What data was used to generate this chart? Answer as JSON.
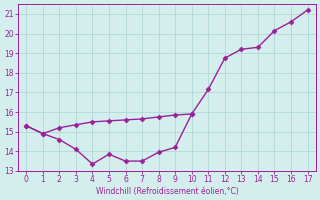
{
  "upper_x": [
    0,
    1,
    2,
    3,
    4,
    5,
    6,
    7,
    8,
    9,
    10,
    11,
    12,
    13,
    14,
    15,
    16,
    17
  ],
  "upper_y": [
    15.3,
    14.9,
    15.2,
    15.35,
    15.5,
    15.55,
    15.6,
    15.65,
    15.75,
    15.85,
    15.9,
    17.15,
    18.75,
    19.2,
    19.3,
    20.15,
    20.6,
    21.2
  ],
  "lower_x": [
    0,
    1,
    2,
    3,
    4,
    5,
    6,
    7,
    8,
    9,
    10
  ],
  "lower_y": [
    15.3,
    14.9,
    14.6,
    14.1,
    13.35,
    13.85,
    13.5,
    13.5,
    13.95,
    14.2,
    15.9
  ],
  "line_color": "#992299",
  "bg_color": "#d4eeee",
  "grid_color": "#b0d8d8",
  "xlabel": "Windchill (Refroidissement éolien,°C)",
  "xlim": [
    -0.5,
    17.5
  ],
  "ylim": [
    13.0,
    21.5
  ],
  "yticks": [
    13,
    14,
    15,
    16,
    17,
    18,
    19,
    20,
    21
  ],
  "xticks": [
    0,
    1,
    2,
    3,
    4,
    5,
    6,
    7,
    8,
    9,
    10,
    11,
    12,
    13,
    14,
    15,
    16,
    17
  ],
  "marker": "D",
  "marker_size": 2.5,
  "line_width": 1.0
}
